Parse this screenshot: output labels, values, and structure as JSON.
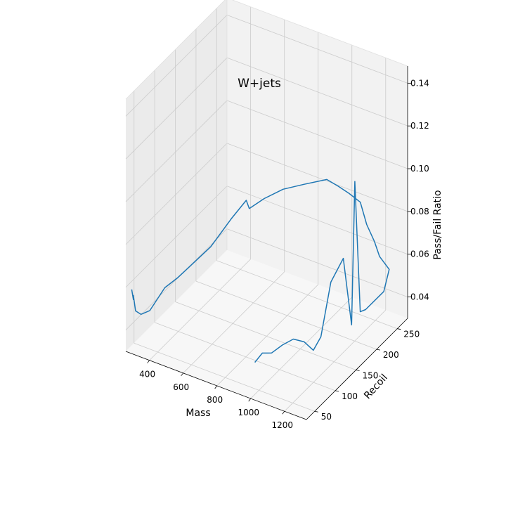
{
  "chart_data": {
    "type": "line",
    "projection": "3d",
    "title": "W+jets",
    "xlabel": "Mass",
    "ylabel": "Recoil",
    "zlabel": "Pass/Fail Ratio",
    "xlim": [
      260,
      1330
    ],
    "ylim": [
      30,
      275
    ],
    "zlim": [
      0.03,
      0.148
    ],
    "xticks": [
      400,
      600,
      800,
      1000,
      1200
    ],
    "yticks": [
      50,
      100,
      150,
      200,
      250
    ],
    "zticks": [
      0.04,
      0.06,
      0.08,
      0.1,
      0.12,
      0.14
    ],
    "ztick_labels": [
      "0.04",
      "0.06",
      "0.08",
      "0.10",
      "0.12",
      "0.14"
    ],
    "grid": true,
    "colors": {
      "line": "#1f77b4",
      "pane_back": "#f2f2f2",
      "pane_side": "#ebebeb",
      "pane_floor": "#f7f7f7",
      "grid": "#cccccc",
      "axis": "#000000"
    },
    "series": [
      {
        "x": [
          295,
          300,
          310,
          330,
          350,
          390,
          430,
          470,
          520,
          580,
          640,
          680,
          710,
          750,
          800,
          850,
          900,
          950,
          1000,
          1050,
          1100,
          1150,
          1200,
          1270,
          1250,
          1240,
          1245,
          1250,
          1255,
          1255,
          1230,
          1220,
          1200,
          1170,
          1130,
          1090,
          1050,
          1020,
          1000
        ],
        "y": [
          30,
          32,
          28,
          25,
          30,
          35,
          55,
          70,
          85,
          105,
          130,
          150,
          145,
          165,
          190,
          220,
          255,
          262,
          268,
          275,
          270,
          268,
          260,
          255,
          250,
          210,
          195,
          180,
          170,
          150,
          130,
          110,
          100,
          90,
          80,
          70,
          60,
          50,
          40
        ],
        "z": [
          0.06,
          0.055,
          0.058,
          0.052,
          0.05,
          0.052,
          0.06,
          0.063,
          0.068,
          0.074,
          0.084,
          0.09,
          0.088,
          0.09,
          0.091,
          0.089,
          0.086,
          0.083,
          0.08,
          0.076,
          0.068,
          0.062,
          0.058,
          0.055,
          0.045,
          0.044,
          0.046,
          0.11,
          0.045,
          0.08,
          0.072,
          0.05,
          0.045,
          0.05,
          0.052,
          0.05,
          0.047,
          0.048,
          0.045
        ]
      }
    ]
  }
}
